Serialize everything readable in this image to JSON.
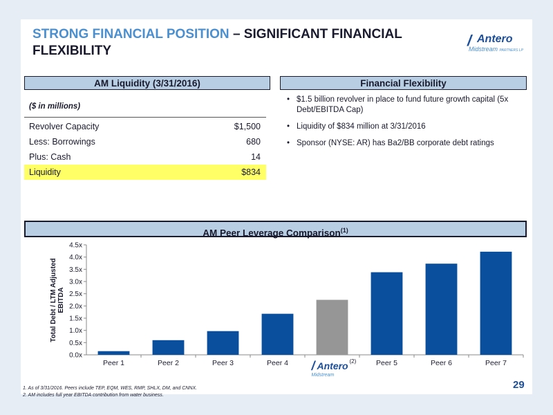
{
  "title": {
    "accent": "STRONG FINANCIAL POSITION",
    "rest": " – SIGNIFICANT FINANCIAL FLEXIBILITY"
  },
  "logo": {
    "brand": "Antero",
    "sub": "Midstream",
    "sub_small": "PARTNERS LP"
  },
  "liquidity": {
    "header": "AM Liquidity (3/31/2016)",
    "units": "($ in millions)",
    "rows": [
      {
        "label": "Revolver Capacity",
        "value": "$1,500"
      },
      {
        "label": "Less: Borrowings",
        "value": "680"
      },
      {
        "label": "Plus: Cash",
        "value": "14"
      },
      {
        "label": "Liquidity",
        "value": "$834"
      }
    ]
  },
  "flexibility": {
    "header": "Financial Flexibility",
    "bullets": [
      "$1.5 billion revolver in place to fund future growth capital (5x Debt/EBITDA Cap)",
      "Liquidity of $834 million at 3/31/2016",
      "Sponsor (NYSE: AR) has Ba2/BB corporate debt ratings"
    ]
  },
  "peer_header": {
    "text": "AM Peer Leverage Comparison",
    "sup": "(1)"
  },
  "chart_data": {
    "type": "bar",
    "categories": [
      "Peer 1",
      "Peer 2",
      "Peer 3",
      "Peer 4",
      "",
      "Peer 5",
      "Peer 6",
      "Peer 7"
    ],
    "values": [
      0.15,
      0.6,
      0.97,
      1.68,
      2.25,
      3.38,
      3.73,
      4.22
    ],
    "highlight_index": 4,
    "highlight_label": {
      "brand": "Antero",
      "sub": "Midstream",
      "sup": "(2)"
    },
    "ylabel": "Total Debt / LTM Adjusted EBITDA",
    "ylim": [
      0,
      4.5
    ],
    "yticks": [
      "0.0x",
      "0.5x",
      "1.0x",
      "1.5x",
      "2.0x",
      "2.5x",
      "3.0x",
      "3.5x",
      "4.0x",
      "4.5x"
    ],
    "colors": {
      "peer": "#0a4f9e",
      "highlight": "#969696"
    }
  },
  "footnotes": [
    "1.  As of 3/31/2016.  Peers include TEP, EQM, WES, RMP, SHLX, DM, and CNNX.",
    "2.  AM includes full year EBITDA contribution from water business."
  ],
  "page_number": "29"
}
